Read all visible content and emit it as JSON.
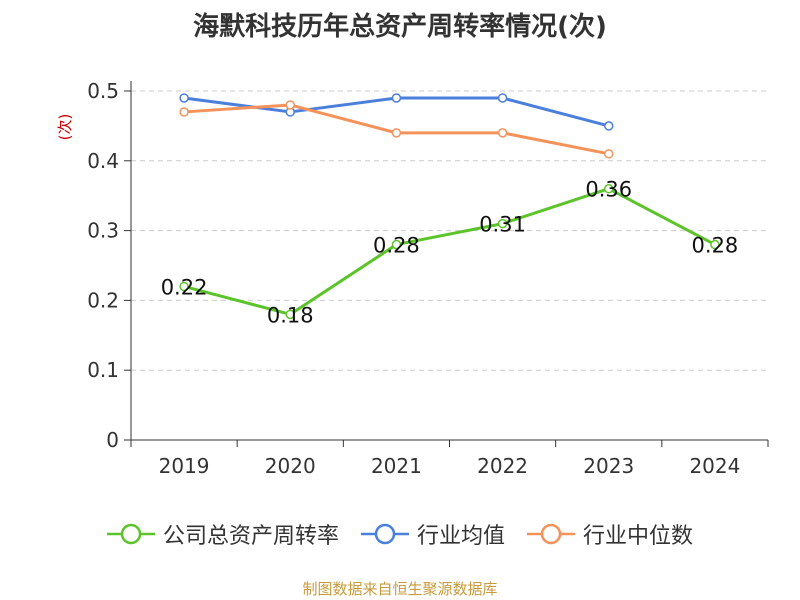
{
  "chart_data": {
    "type": "line",
    "title": "海默科技历年总资产周转率情况(次)",
    "ylabel": "(次)",
    "xlabel": "",
    "categories": [
      "2019",
      "2020",
      "2021",
      "2022",
      "2023",
      "2024"
    ],
    "ylim": [
      0,
      0.5
    ],
    "yticks": [
      "0",
      "0.1",
      "0.2",
      "0.3",
      "0.4",
      "0.5"
    ],
    "grid": true,
    "legend_position": "bottom",
    "series": [
      {
        "name": "公司总资产周转率",
        "color": "#5cc42a",
        "values": [
          0.22,
          0.18,
          0.28,
          0.31,
          0.36,
          0.28
        ],
        "labels": [
          "0.22",
          "0.18",
          "0.28",
          "0.31",
          "0.36",
          "0.28"
        ]
      },
      {
        "name": "行业均值",
        "color": "#4a7fdc",
        "values": [
          0.49,
          0.47,
          0.49,
          0.49,
          0.45,
          null
        ]
      },
      {
        "name": "行业中位数",
        "color": "#f5925a",
        "values": [
          0.47,
          0.48,
          0.44,
          0.44,
          0.41,
          null
        ]
      }
    ]
  },
  "footer": {
    "source": "制图数据来自恒生聚源数据库"
  }
}
